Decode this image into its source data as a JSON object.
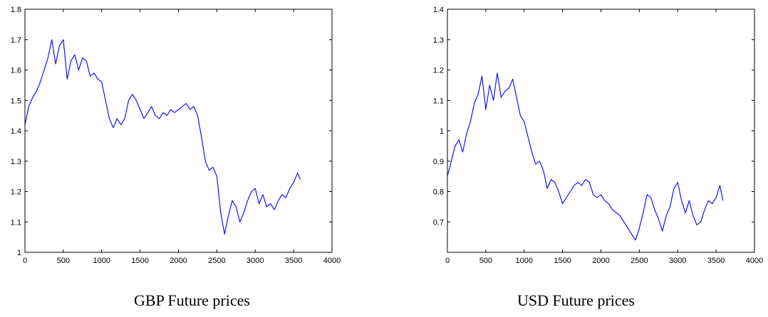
{
  "chart_data": [
    {
      "type": "line",
      "caption": "GBP Future prices",
      "xlim": [
        0,
        4000
      ],
      "ylim": [
        1,
        1.8
      ],
      "xticks": [
        0,
        500,
        1000,
        1500,
        2000,
        2500,
        3000,
        3500,
        4000
      ],
      "xtick_labels": [
        "0",
        "500",
        "1000",
        "1500",
        "2000",
        "2500",
        "3000",
        "3500",
        "4000"
      ],
      "yticks": [
        1,
        1.1,
        1.2,
        1.3,
        1.4,
        1.5,
        1.6,
        1.7,
        1.8
      ],
      "ytick_labels": [
        "1",
        "1.1",
        "1.2",
        "1.3",
        "1.4",
        "1.5",
        "1.6",
        "1.7",
        "1.8"
      ],
      "grid": false,
      "line_color": "#0000ff",
      "series": [
        {
          "x": [
            0,
            50,
            100,
            150,
            200,
            250,
            300,
            350,
            400,
            450,
            500,
            550,
            600,
            650,
            700,
            750,
            800,
            850,
            900,
            950,
            1000,
            1050,
            1100,
            1150,
            1200,
            1250,
            1300,
            1350,
            1400,
            1450,
            1500,
            1550,
            1600,
            1650,
            1700,
            1750,
            1800,
            1850,
            1900,
            1950,
            2000,
            2050,
            2100,
            2150,
            2200,
            2250,
            2300,
            2350,
            2400,
            2450,
            2500,
            2550,
            2600,
            2650,
            2700,
            2750,
            2800,
            2850,
            2900,
            2950,
            3000,
            3050,
            3100,
            3150,
            3200,
            3250,
            3300,
            3350,
            3400,
            3450,
            3500,
            3550,
            3590
          ],
          "y": [
            1.42,
            1.48,
            1.51,
            1.53,
            1.56,
            1.6,
            1.64,
            1.7,
            1.62,
            1.68,
            1.7,
            1.57,
            1.63,
            1.65,
            1.6,
            1.64,
            1.63,
            1.58,
            1.59,
            1.57,
            1.56,
            1.5,
            1.44,
            1.41,
            1.44,
            1.42,
            1.44,
            1.5,
            1.52,
            1.5,
            1.47,
            1.44,
            1.46,
            1.48,
            1.45,
            1.44,
            1.46,
            1.45,
            1.47,
            1.46,
            1.47,
            1.48,
            1.49,
            1.47,
            1.48,
            1.45,
            1.38,
            1.3,
            1.27,
            1.28,
            1.25,
            1.13,
            1.06,
            1.12,
            1.17,
            1.15,
            1.1,
            1.13,
            1.17,
            1.2,
            1.21,
            1.16,
            1.19,
            1.15,
            1.16,
            1.14,
            1.17,
            1.19,
            1.18,
            1.21,
            1.23,
            1.26,
            1.24
          ]
        }
      ]
    },
    {
      "type": "line",
      "caption": "USD Future prices",
      "xlim": [
        0,
        4000
      ],
      "ylim": [
        0.6,
        1.4
      ],
      "xticks": [
        0,
        500,
        1000,
        1500,
        2000,
        2500,
        3000,
        3500,
        4000
      ],
      "xtick_labels": [
        "0",
        "500",
        "1000",
        "1500",
        "2000",
        "2500",
        "3000",
        "3500",
        "4000"
      ],
      "yticks": [
        0.7,
        0.8,
        0.9,
        1,
        1.1,
        1.2,
        1.3,
        1.4
      ],
      "ytick_labels": [
        "0.7",
        "0.8",
        "0.9",
        "1",
        "1.1",
        "1.2",
        "1.3",
        "1.4"
      ],
      "grid": false,
      "line_color": "#0000ff",
      "series": [
        {
          "x": [
            0,
            50,
            100,
            150,
            200,
            250,
            300,
            350,
            400,
            450,
            500,
            550,
            600,
            650,
            700,
            750,
            800,
            850,
            900,
            950,
            1000,
            1050,
            1100,
            1150,
            1200,
            1250,
            1300,
            1350,
            1400,
            1450,
            1500,
            1550,
            1600,
            1650,
            1700,
            1750,
            1800,
            1850,
            1900,
            1950,
            2000,
            2050,
            2100,
            2150,
            2200,
            2250,
            2300,
            2350,
            2400,
            2450,
            2500,
            2550,
            2600,
            2650,
            2700,
            2750,
            2800,
            2850,
            2900,
            2950,
            3000,
            3050,
            3100,
            3150,
            3200,
            3250,
            3300,
            3350,
            3400,
            3450,
            3500,
            3550,
            3590
          ],
          "y": [
            0.85,
            0.9,
            0.95,
            0.97,
            0.93,
            0.99,
            1.03,
            1.09,
            1.12,
            1.18,
            1.07,
            1.15,
            1.1,
            1.19,
            1.11,
            1.13,
            1.14,
            1.17,
            1.11,
            1.05,
            1.03,
            0.98,
            0.93,
            0.89,
            0.9,
            0.87,
            0.81,
            0.84,
            0.83,
            0.8,
            0.76,
            0.78,
            0.8,
            0.82,
            0.83,
            0.82,
            0.84,
            0.83,
            0.79,
            0.78,
            0.79,
            0.77,
            0.76,
            0.74,
            0.73,
            0.72,
            0.7,
            0.68,
            0.66,
            0.64,
            0.68,
            0.73,
            0.79,
            0.78,
            0.74,
            0.71,
            0.67,
            0.72,
            0.75,
            0.81,
            0.83,
            0.77,
            0.73,
            0.77,
            0.72,
            0.69,
            0.7,
            0.74,
            0.77,
            0.76,
            0.78,
            0.82,
            0.77
          ]
        }
      ]
    }
  ]
}
